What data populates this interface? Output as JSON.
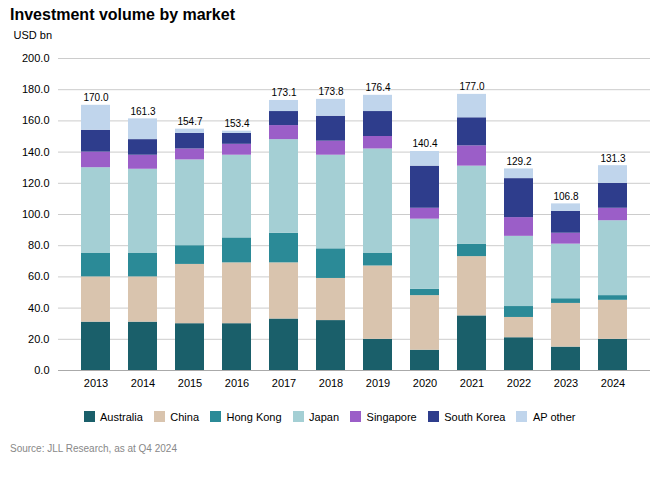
{
  "chart_data": {
    "type": "bar",
    "stacked": true,
    "title": "Investment volume by market",
    "ylabel": "USD bn",
    "source": "Source: JLL Research, as at Q4 2024",
    "categories": [
      "2013",
      "2014",
      "2015",
      "2016",
      "2017",
      "2018",
      "2019",
      "2020",
      "2021",
      "2022",
      "2023",
      "2024"
    ],
    "series": [
      {
        "name": "Australia",
        "color": "#1a5f6a",
        "values": [
          31.0,
          31.0,
          30.0,
          30.0,
          33.0,
          32.0,
          20.0,
          13.0,
          35.0,
          21.0,
          15.0,
          20.0
        ]
      },
      {
        "name": "China",
        "color": "#d9c4ae",
        "values": [
          29.0,
          29.0,
          38.0,
          39.0,
          36.0,
          27.0,
          47.0,
          35.0,
          38.0,
          13.0,
          28.0,
          25.0
        ]
      },
      {
        "name": "Hong Kong",
        "color": "#2b8a97",
        "values": [
          15.0,
          15.0,
          12.0,
          16.0,
          19.0,
          19.0,
          8.0,
          4.0,
          8.0,
          7.0,
          3.0,
          3.0
        ]
      },
      {
        "name": "Japan",
        "color": "#a4cfd4",
        "values": [
          55.0,
          54.0,
          55.0,
          53.0,
          60.0,
          60.0,
          67.0,
          45.0,
          50.0,
          45.0,
          35.0,
          48.0
        ]
      },
      {
        "name": "Singapore",
        "color": "#9b5ec8",
        "values": [
          10.0,
          9.0,
          7.0,
          7.0,
          9.0,
          9.0,
          8.0,
          7.0,
          13.0,
          12.0,
          7.0,
          8.0
        ]
      },
      {
        "name": "South Korea",
        "color": "#2e3d8c",
        "values": [
          14.0,
          10.0,
          10.0,
          7.0,
          9.0,
          16.0,
          16.0,
          27.0,
          18.0,
          25.0,
          14.0,
          16.0
        ]
      },
      {
        "name": "AP other",
        "color": "#c0d5ec",
        "values": [
          16.0,
          13.3,
          2.7,
          1.4,
          7.1,
          10.8,
          10.4,
          9.4,
          15.0,
          6.2,
          4.8,
          11.3
        ]
      }
    ],
    "totals": {
      "values": [
        170.0,
        161.3,
        154.7,
        153.4,
        173.1,
        173.8,
        176.4,
        140.4,
        177.0,
        129.2,
        106.8,
        131.3
      ],
      "value_labels": [
        "170.0",
        "161.3",
        "154.7",
        "153.4",
        "173.1",
        "173.8",
        "176.4",
        "140.4",
        "177.0",
        "129.2",
        "106.8",
        "131.3"
      ]
    },
    "ylim": [
      0,
      200
    ],
    "yticks": [
      {
        "value": 0,
        "label": "0.0"
      },
      {
        "value": 20,
        "label": "20.0"
      },
      {
        "value": 40,
        "label": "40.0"
      },
      {
        "value": 60,
        "label": "60.0"
      },
      {
        "value": 80,
        "label": "80.0"
      },
      {
        "value": 100,
        "label": "100.0"
      },
      {
        "value": 120,
        "label": "120.0"
      },
      {
        "value": 140,
        "label": "140.0"
      },
      {
        "value": 160,
        "label": "160.0"
      },
      {
        "value": 180,
        "label": "180.0"
      },
      {
        "value": 200,
        "label": "200.0"
      }
    ],
    "grid": true,
    "legend": "bottom"
  }
}
